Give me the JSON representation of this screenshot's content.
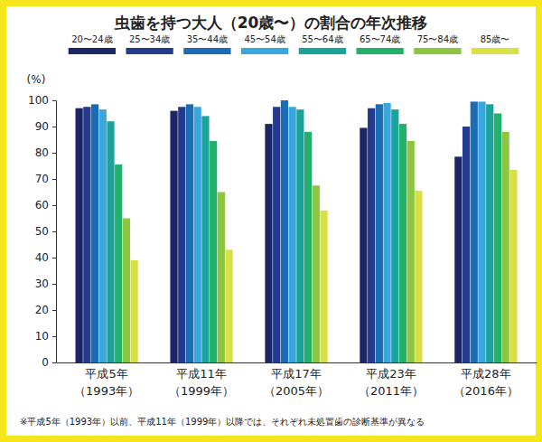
{
  "chart_data": {
    "type": "bar",
    "title": "虫歯を持つ大人（20歳〜）の割合の年次推移",
    "ylabel": "(%)",
    "categories": [
      "平成5年\n（1993年）",
      "平成11年\n（1999年）",
      "平成17年\n（2005年）",
      "平成23年\n（2011年）",
      "平成28年\n（2016年）"
    ],
    "series": [
      {
        "name": "20〜24歳",
        "color": "#1c2566",
        "values": [
          97,
          96,
          91,
          89.5,
          78.5
        ]
      },
      {
        "name": "25〜34歳",
        "color": "#233a8f",
        "values": [
          97.5,
          97.5,
          97.5,
          97,
          90
        ]
      },
      {
        "name": "35〜44歳",
        "color": "#1a6db4",
        "values": [
          98.5,
          98.5,
          100,
          98.5,
          99.5
        ]
      },
      {
        "name": "45〜54歳",
        "color": "#3aa6de",
        "values": [
          96.5,
          97.5,
          97.5,
          99,
          99.5
        ]
      },
      {
        "name": "55〜64歳",
        "color": "#1aa398",
        "values": [
          92,
          94,
          96.5,
          96.5,
          98.5
        ]
      },
      {
        "name": "65〜74歳",
        "color": "#22b06a",
        "values": [
          75.5,
          84.5,
          88,
          91,
          95
        ]
      },
      {
        "name": "75〜84歳",
        "color": "#8cc63f",
        "values": [
          55,
          65,
          67.5,
          84.5,
          88
        ]
      },
      {
        "name": "85歳〜",
        "color": "#d8e046",
        "values": [
          39,
          43,
          58,
          65.5,
          73.5
        ]
      }
    ],
    "ylim": [
      0,
      100
    ],
    "yticks": [
      0,
      10,
      20,
      30,
      40,
      50,
      60,
      70,
      80,
      90,
      100
    ],
    "grid": false,
    "legend": "top",
    "data_labels": false,
    "annotation": "※平成5年（1993年）以前、平成11年（1999年）以降では、それぞれ未処置歯の診断基準が異なる"
  }
}
